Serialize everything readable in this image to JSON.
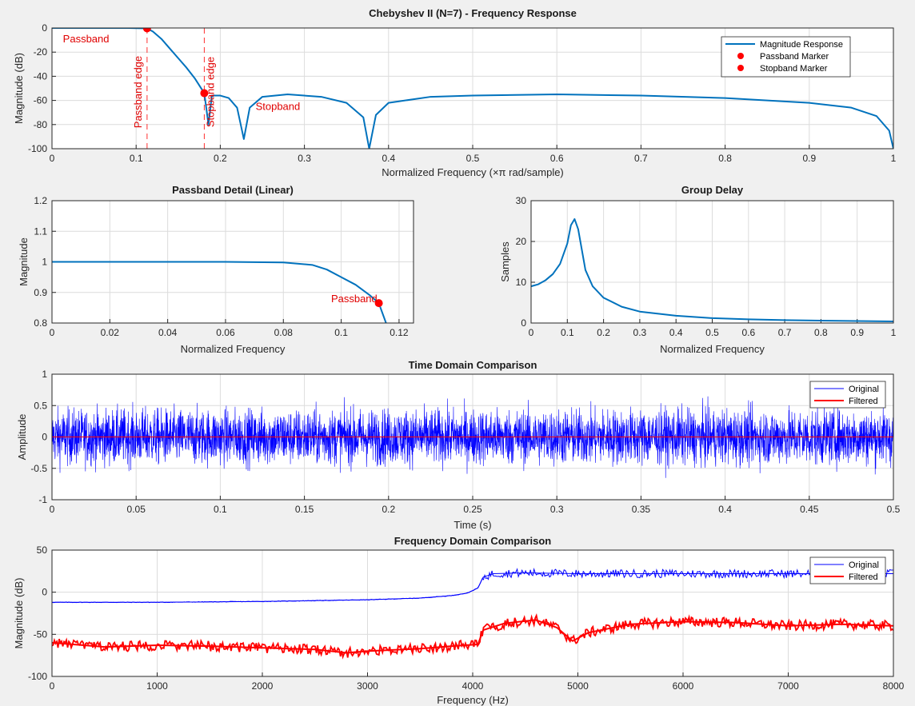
{
  "figure": {
    "background": "#f0f0f0",
    "colors": {
      "blue_matlab": "#0072bd",
      "blue": "#0000ff",
      "red": "#ff0000",
      "annotation_red": "#e00000",
      "grid": "#dcdcdc"
    }
  },
  "chart_data": [
    {
      "id": "freq_response",
      "type": "line",
      "title": "Chebyshev II (N=7) - Frequency Response",
      "xlabel": "Normalized Frequency (×π rad/sample)",
      "ylabel": "Magnitude (dB)",
      "xlim": [
        0,
        1
      ],
      "ylim": [
        -100,
        0
      ],
      "xticks": [
        "0",
        "0.1",
        "0.2",
        "0.3",
        "0.4",
        "0.5",
        "0.6",
        "0.7",
        "0.8",
        "0.9",
        "1"
      ],
      "yticks": [
        "0",
        "-20",
        "-40",
        "-60",
        "-80",
        "-100"
      ],
      "grid": true,
      "legend": {
        "position": "top-right",
        "entries": [
          "Magnitude Response",
          "Passband Marker",
          "Stopband Marker"
        ]
      },
      "series": [
        {
          "name": "Magnitude Response",
          "color": "#0072bd",
          "x": [
            0,
            0.05,
            0.09,
            0.1,
            0.113,
            0.12,
            0.13,
            0.14,
            0.15,
            0.16,
            0.17,
            0.181,
            0.186,
            0.19,
            0.2,
            0.21,
            0.22,
            0.228,
            0.235,
            0.25,
            0.28,
            0.32,
            0.35,
            0.37,
            0.377,
            0.385,
            0.4,
            0.45,
            0.5,
            0.6,
            0.7,
            0.8,
            0.9,
            0.95,
            0.98,
            0.995,
            1
          ],
          "y": [
            0,
            0,
            0,
            -0.2,
            -0.3,
            -3,
            -9,
            -17,
            -25,
            -33,
            -42,
            -54,
            -80,
            -56,
            -56,
            -58,
            -66,
            -92,
            -66,
            -57,
            -55,
            -57,
            -62,
            -74,
            -100,
            -72,
            -62,
            -57,
            -56,
            -55,
            -56,
            -58,
            -62,
            -66,
            -73,
            -85,
            -100
          ]
        },
        {
          "name": "Passband Marker",
          "color": "#ff0000",
          "x": [
            0.113
          ],
          "y": [
            -0.3
          ]
        },
        {
          "name": "Stopband Marker",
          "color": "#ff0000",
          "x": [
            0.181
          ],
          "y": [
            -54
          ]
        }
      ],
      "vlines": [
        {
          "x": 0.113,
          "label": "Passband edge"
        },
        {
          "x": 0.181,
          "label": "Stopband edge"
        }
      ],
      "annotations": [
        {
          "text": "Passband",
          "x": 0.013,
          "y": -12
        },
        {
          "text": "Stopband",
          "x": 0.242,
          "y": -68
        }
      ]
    },
    {
      "id": "passband_detail",
      "type": "line",
      "title": "Passband Detail (Linear)",
      "xlabel": "Normalized Frequency",
      "ylabel": "Magnitude",
      "xlim": [
        0,
        0.125
      ],
      "ylim": [
        0.8,
        1.2
      ],
      "xticks": [
        "0",
        "0.02",
        "0.04",
        "0.06",
        "0.08",
        "0.1",
        "0.12"
      ],
      "yticks": [
        "0.8",
        "0.9",
        "1",
        "1.1",
        "1.2"
      ],
      "grid": true,
      "series": [
        {
          "color": "#0072bd",
          "x": [
            0,
            0.02,
            0.04,
            0.06,
            0.08,
            0.09,
            0.095,
            0.1,
            0.105,
            0.11,
            0.113,
            0.1155
          ],
          "y": [
            1,
            1,
            1,
            1,
            0.998,
            0.99,
            0.975,
            0.95,
            0.925,
            0.89,
            0.865,
            0.8
          ]
        },
        {
          "color": "#ff0000",
          "x": [
            0.113
          ],
          "y": [
            0.865
          ]
        }
      ],
      "annotations": [
        {
          "text": "Passband",
          "x": 0.0965,
          "y": 0.868
        }
      ]
    },
    {
      "id": "group_delay",
      "type": "line",
      "title": "Group Delay",
      "xlabel": "Normalized Frequency",
      "ylabel": "Samples",
      "xlim": [
        0,
        1
      ],
      "ylim": [
        0,
        30
      ],
      "xticks": [
        "0",
        "0.1",
        "0.2",
        "0.3",
        "0.4",
        "0.5",
        "0.6",
        "0.7",
        "0.8",
        "0.9",
        "1"
      ],
      "yticks": [
        "0",
        "10",
        "20",
        "30"
      ],
      "grid": true,
      "series": [
        {
          "color": "#0072bd",
          "x": [
            0,
            0.02,
            0.04,
            0.06,
            0.08,
            0.1,
            0.11,
            0.12,
            0.13,
            0.14,
            0.15,
            0.17,
            0.2,
            0.25,
            0.3,
            0.4,
            0.5,
            0.6,
            0.7,
            0.8,
            0.9,
            1
          ],
          "y": [
            9,
            9.5,
            10.5,
            12,
            14.5,
            19.5,
            24,
            25.5,
            23,
            18,
            13,
            9,
            6.2,
            4,
            2.8,
            1.8,
            1.2,
            0.9,
            0.7,
            0.6,
            0.5,
            0.4
          ]
        }
      ]
    },
    {
      "id": "time_domain",
      "type": "line",
      "title": "Time Domain Comparison",
      "xlabel": "Time (s)",
      "ylabel": "Amplitude",
      "xlim": [
        0,
        0.5
      ],
      "ylim": [
        -1,
        1
      ],
      "xticks": [
        "0",
        "0.05",
        "0.1",
        "0.15",
        "0.2",
        "0.25",
        "0.3",
        "0.35",
        "0.4",
        "0.45",
        "0.5"
      ],
      "yticks": [
        "1",
        "0.5",
        "0",
        "-0.5",
        "-1"
      ],
      "grid": true,
      "legend": {
        "position": "top-right",
        "entries": [
          "Original",
          "Filtered"
        ]
      },
      "series": [
        {
          "name": "Original",
          "color": "#0000ff",
          "kind": "noise",
          "mean": 0,
          "typical_amplitude": 0.4,
          "peak_amplitude": 0.8
        },
        {
          "name": "Filtered",
          "color": "#ff0000",
          "x": [
            0,
            0.5
          ],
          "y": [
            0,
            0
          ]
        }
      ]
    },
    {
      "id": "freq_domain",
      "type": "line",
      "title": "Frequency Domain Comparison",
      "xlabel": "Frequency (Hz)",
      "ylabel": "Magnitude (dB)",
      "xlim": [
        0,
        8000
      ],
      "ylim": [
        -100,
        50
      ],
      "xticks": [
        "0",
        "1000",
        "2000",
        "3000",
        "4000",
        "5000",
        "6000",
        "7000",
        "8000"
      ],
      "yticks": [
        "50",
        "0",
        "-50",
        "-100"
      ],
      "grid": true,
      "legend": {
        "position": "top-right",
        "entries": [
          "Original",
          "Filtered"
        ]
      },
      "series": [
        {
          "name": "Original",
          "color": "#0000ff",
          "x": [
            0,
            1000,
            2000,
            3000,
            3500,
            3800,
            3950,
            4050,
            4100,
            4200,
            4500,
            5000,
            5500,
            6000,
            6500,
            7000,
            7500,
            8000
          ],
          "y": [
            -12,
            -12,
            -11,
            -9,
            -7,
            -4,
            -1,
            5,
            18,
            22,
            23,
            22,
            22,
            22,
            22,
            22,
            22,
            22
          ]
        },
        {
          "name": "Filtered",
          "color": "#ff0000",
          "x": [
            0,
            500,
            1000,
            1500,
            2000,
            2500,
            2800,
            3000,
            3500,
            3800,
            4050,
            4100,
            4300,
            4600,
            4800,
            4950,
            5100,
            5500,
            6000,
            6500,
            7000,
            7500,
            8000
          ],
          "y": [
            -60,
            -65,
            -63,
            -64,
            -66,
            -68,
            -72,
            -70,
            -67,
            -64,
            -62,
            -45,
            -37,
            -33,
            -42,
            -58,
            -48,
            -38,
            -35,
            -36,
            -40,
            -38,
            -40
          ]
        }
      ]
    }
  ]
}
